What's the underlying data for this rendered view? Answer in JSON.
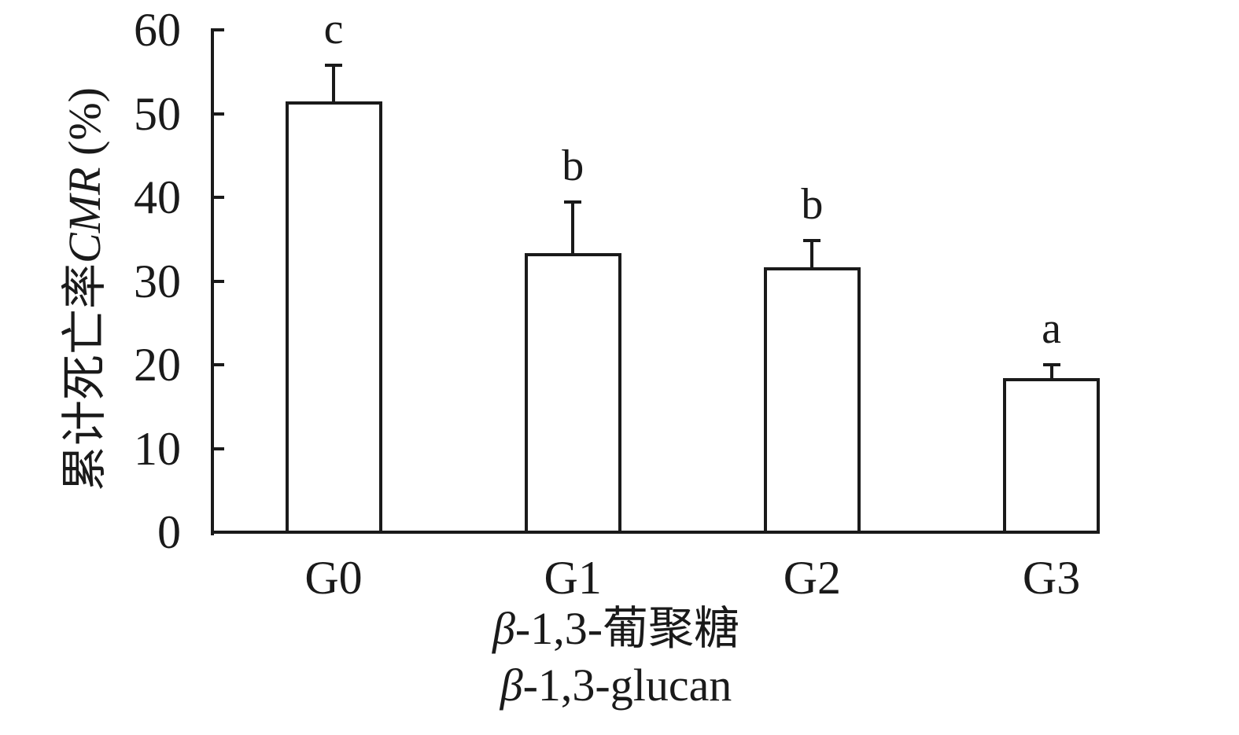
{
  "chart_data": {
    "type": "bar",
    "categories": [
      "G0",
      "G1",
      "G2",
      "G3"
    ],
    "values": [
      51.5,
      33.3,
      31.6,
      18.4
    ],
    "errors_plus": [
      4.3,
      6.1,
      3.2,
      1.6
    ],
    "sig_letters": [
      "c",
      "b",
      "b",
      "a"
    ],
    "ylabel": "累计死亡率CMR (%)",
    "ylabel_parts": {
      "cn": "累计死亡率",
      "italic": "CMR",
      "suffix": " (%)"
    },
    "xlabel_line1": {
      "italic": "β",
      "rest": "-1,3-葡聚糖"
    },
    "xlabel_line2": {
      "italic": "β",
      "rest": "-1,3-glucan"
    },
    "ylim": [
      0,
      60
    ],
    "yticks": [
      0,
      10,
      20,
      30,
      40,
      50,
      60
    ],
    "grid": false,
    "legend": "none",
    "bar_fill": "#ffffff",
    "line_color": "#1a1a1a"
  }
}
